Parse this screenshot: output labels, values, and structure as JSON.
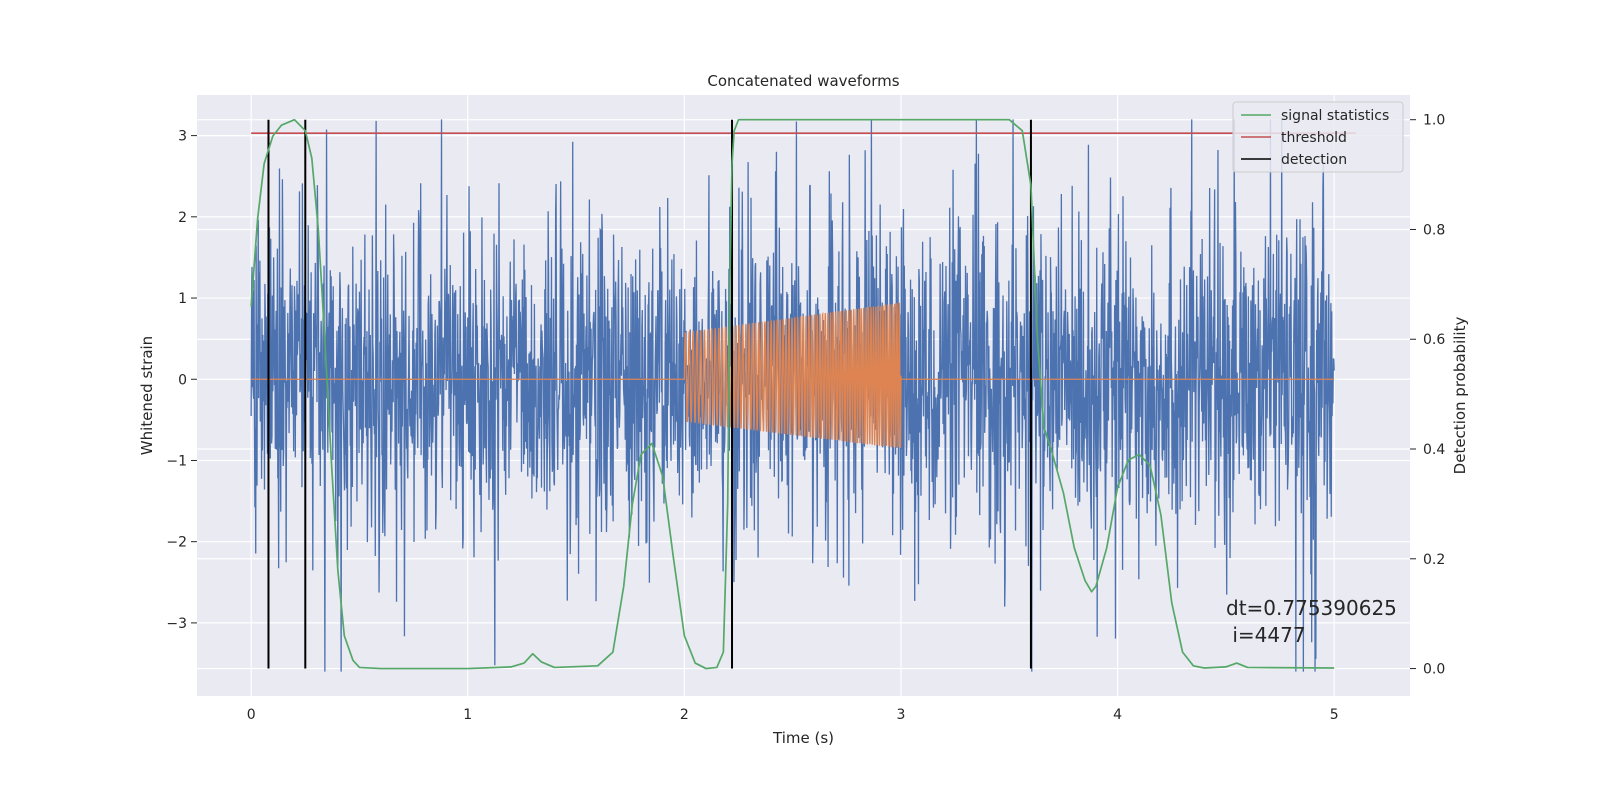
{
  "chart_data": {
    "type": "line",
    "title": "Concatenated waveforms",
    "xlabel": "Time (s)",
    "ylabel": "Whitened strain",
    "ylabel_right": "Detection probability",
    "xlim": [
      -0.25,
      5.35
    ],
    "ylim": [
      -3.9,
      3.5
    ],
    "ylim_right": [
      -0.05,
      1.045
    ],
    "xticks": [
      0,
      1,
      2,
      3,
      4,
      5
    ],
    "yticks": [
      -3,
      -2,
      -1,
      0,
      1,
      2,
      3
    ],
    "yticks_right": [
      0.0,
      0.2,
      0.4,
      0.6,
      0.8,
      1.0
    ],
    "xtick_labels": [
      "0",
      "1",
      "2",
      "3",
      "4",
      "5"
    ],
    "ytick_labels": [
      "−3",
      "−2",
      "−1",
      "0",
      "1",
      "2",
      "3"
    ],
    "ytick_right_labels": [
      "0.0",
      "0.2",
      "0.4",
      "0.6",
      "0.8",
      "1.0"
    ],
    "grid": true,
    "legend_position": "top-right",
    "legend": [
      {
        "label": "signal statistics",
        "color": "#55a868"
      },
      {
        "label": "threshold",
        "color": "#c44e52"
      },
      {
        "label": "detection",
        "color": "#000000"
      }
    ],
    "series": [
      {
        "kind": "strain-noise",
        "axis": "left",
        "color": "#4c72b0",
        "x_range": [
          0,
          5
        ],
        "amplitude_envelope": 2.2,
        "peak": 3.2
      },
      {
        "kind": "injected-waveform",
        "axis": "left",
        "color": "#dd8452",
        "x_range": [
          0,
          5
        ],
        "chirp": {
          "t_start": 2.0,
          "t_end": 3.0,
          "amp_start": 0.55,
          "amp_end": 0.9
        }
      },
      {
        "name": "signal statistics",
        "axis": "right",
        "color": "#55a868",
        "x": [
          0.0,
          0.03,
          0.06,
          0.1,
          0.14,
          0.2,
          0.25,
          0.28,
          0.31,
          0.34,
          0.37,
          0.4,
          0.43,
          0.47,
          0.5,
          0.6,
          0.8,
          1.0,
          1.2,
          1.26,
          1.3,
          1.34,
          1.4,
          1.6,
          1.67,
          1.72,
          1.76,
          1.8,
          1.85,
          1.9,
          1.95,
          2.0,
          2.05,
          2.1,
          2.15,
          2.18,
          2.2,
          2.21,
          2.22,
          2.23,
          2.25,
          2.3,
          2.5,
          3.0,
          3.5,
          3.56,
          3.6,
          3.63,
          3.66,
          3.7,
          3.75,
          3.8,
          3.85,
          3.88,
          3.9,
          3.95,
          4.0,
          4.05,
          4.1,
          4.15,
          4.2,
          4.25,
          4.3,
          4.35,
          4.4,
          4.5,
          4.55,
          4.6,
          5.0
        ],
        "y": [
          0.66,
          0.82,
          0.92,
          0.97,
          0.99,
          1.0,
          0.98,
          0.93,
          0.8,
          0.6,
          0.38,
          0.18,
          0.06,
          0.015,
          0.002,
          0.0,
          0.0,
          0.0,
          0.003,
          0.01,
          0.027,
          0.012,
          0.002,
          0.005,
          0.03,
          0.15,
          0.3,
          0.39,
          0.41,
          0.35,
          0.2,
          0.06,
          0.01,
          0.0,
          0.002,
          0.03,
          0.3,
          0.7,
          0.92,
          0.98,
          1.0,
          1.0,
          1.0,
          1.0,
          1.0,
          0.98,
          0.88,
          0.6,
          0.44,
          0.39,
          0.32,
          0.22,
          0.16,
          0.14,
          0.15,
          0.22,
          0.33,
          0.38,
          0.39,
          0.37,
          0.28,
          0.12,
          0.03,
          0.005,
          0.001,
          0.003,
          0.01,
          0.002,
          0.001
        ]
      },
      {
        "name": "threshold",
        "axis": "left",
        "color": "#c44e52",
        "x": [
          0,
          5.1
        ],
        "y": [
          3.03,
          3.03
        ]
      },
      {
        "name": "detection",
        "axis": "right",
        "color": "#000000",
        "x": [
          0.08,
          0.25,
          2.22,
          3.6
        ],
        "y_range": [
          0.0,
          1.0
        ]
      }
    ],
    "annotation": {
      "line1": "dt=0.775390625",
      "line2": " i=4477"
    }
  }
}
